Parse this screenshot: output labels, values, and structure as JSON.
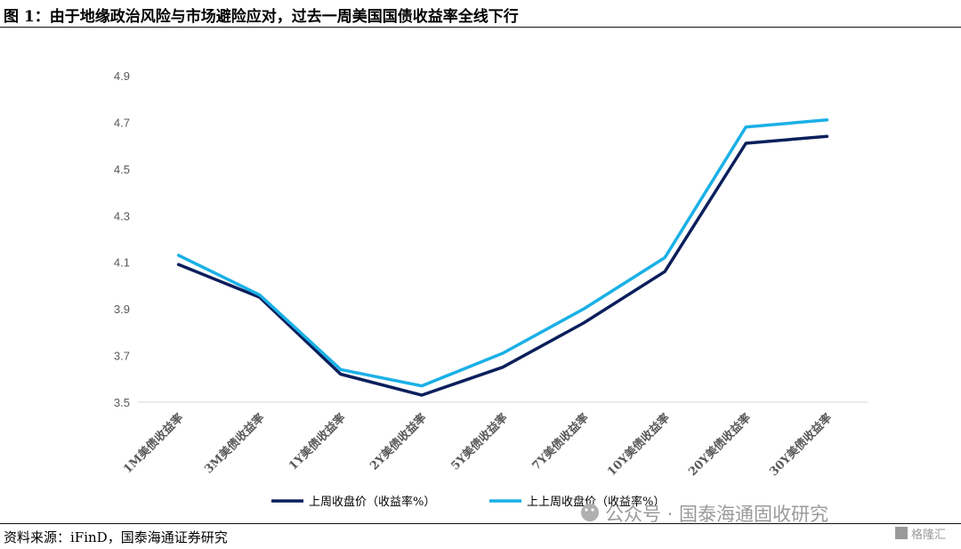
{
  "figure": {
    "title": "图 1：由于地缘政治风险与市场避险应对，过去一周美国国债收益率全线下行",
    "source": "资料来源：iFinD，国泰海通证券研究"
  },
  "watermark": {
    "text": "公众号 · 国泰海通固收研究",
    "badge": "格隆汇"
  },
  "chart_data": {
    "type": "line",
    "categories": [
      "1M美债收益率",
      "3M美债收益率",
      "1Y美债收益率",
      "2Y美债收益率",
      "5Y美债收益率",
      "7Y美债收益率",
      "10Y美债收益率",
      "20Y美债收益率",
      "30Y美债收益率"
    ],
    "series": [
      {
        "name": "上周收盘价（收益率%）",
        "color": "#0b1f5c",
        "values": [
          4.09,
          3.95,
          3.62,
          3.53,
          3.65,
          3.84,
          4.06,
          4.61,
          4.64
        ]
      },
      {
        "name": "上上周收盘价（收益率%）",
        "color": "#1ab0e6",
        "values": [
          4.13,
          3.96,
          3.64,
          3.57,
          3.71,
          3.9,
          4.12,
          4.68,
          4.71
        ]
      }
    ],
    "yticks": [
      "3.5",
      "3.7",
      "3.9",
      "4.1",
      "4.3",
      "4.5",
      "4.7",
      "4.9"
    ],
    "ylim": [
      3.5,
      4.9
    ],
    "grid": false,
    "legend": "bottom"
  }
}
